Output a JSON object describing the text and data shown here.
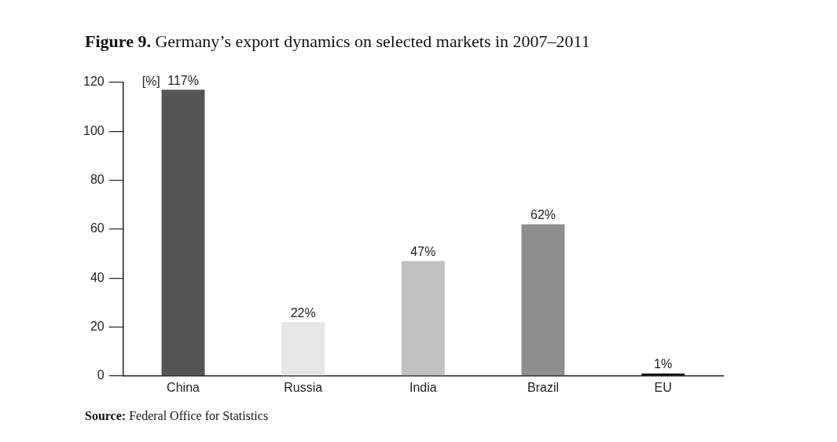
{
  "chart_data": {
    "type": "bar",
    "title": "Figure 9. Germany’s export dynamics on selected markets in 2007–2011",
    "ylabel": "[%]",
    "categories": [
      "China",
      "Russia",
      "India",
      "Brazil",
      "EU"
    ],
    "values": [
      117,
      22,
      47,
      62,
      1
    ],
    "colors": [
      "#555555",
      "#e6e6e6",
      "#c0c0c0",
      "#8e8e8e",
      "#111111"
    ],
    "value_labels": [
      "117%",
      "22%",
      "47%",
      "62%",
      "1%"
    ],
    "ylim": [
      0,
      120
    ],
    "yticks": [
      0,
      20,
      40,
      60,
      80,
      100,
      120
    ],
    "legend": false,
    "annotations": [
      "Source: Federal Office for Statistics"
    ]
  }
}
